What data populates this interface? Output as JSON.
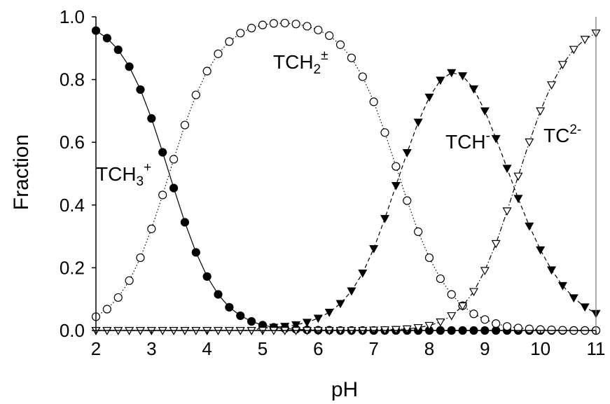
{
  "chart_data": {
    "type": "scatter",
    "title": "",
    "xlabel": "pH",
    "ylabel": "Fraction",
    "xlim": [
      2,
      11
    ],
    "ylim": [
      0,
      1
    ],
    "xticks": [
      "2",
      "3",
      "4",
      "5",
      "6",
      "7",
      "8",
      "9",
      "10",
      "11"
    ],
    "yticks": [
      "0.0",
      "0.2",
      "0.4",
      "0.6",
      "0.8",
      "1.0"
    ],
    "grid": false,
    "legend": "none",
    "right_border": true,
    "x": [
      2.0,
      2.2,
      2.4,
      2.6,
      2.8,
      3.0,
      3.2,
      3.4,
      3.6,
      3.8,
      4.0,
      4.2,
      4.4,
      4.6,
      4.8,
      5.0,
      5.2,
      5.4,
      5.6,
      5.8,
      6.0,
      6.2,
      6.4,
      6.6,
      6.8,
      7.0,
      7.2,
      7.4,
      7.6,
      7.8,
      8.0,
      8.2,
      8.4,
      8.6,
      8.8,
      9.0,
      9.2,
      9.4,
      9.6,
      9.8,
      10.0,
      10.2,
      10.4,
      10.6,
      10.8,
      11.0
    ],
    "series": [
      {
        "name": "TCH3+",
        "label_base": "TCH",
        "label_sub": "3",
        "label_sup": "+",
        "marker": "filled-circle",
        "line": "solid",
        "y": [
          0.956,
          0.932,
          0.895,
          0.841,
          0.768,
          0.676,
          0.568,
          0.454,
          0.345,
          0.249,
          0.172,
          0.115,
          0.074,
          0.047,
          0.029,
          0.017,
          0.01,
          0.006,
          0.004,
          0.002,
          0.001,
          0.001,
          0.0,
          0.0,
          0.0,
          0.0,
          0.0,
          0.0,
          0.0,
          0.0,
          0.0,
          0.0,
          0.0,
          0.0,
          0.0,
          0.0,
          0.0,
          0.0,
          0.0,
          0.0,
          0.0,
          0.0,
          0.0,
          0.0,
          0.0,
          0.0
        ]
      },
      {
        "name": "TCH2±",
        "label_base": "TCH",
        "label_sub": "2",
        "label_sup": "±",
        "marker": "open-circle",
        "line": "dotted",
        "y": [
          0.044,
          0.068,
          0.105,
          0.159,
          0.232,
          0.324,
          0.432,
          0.546,
          0.655,
          0.751,
          0.827,
          0.882,
          0.921,
          0.948,
          0.964,
          0.974,
          0.979,
          0.98,
          0.977,
          0.97,
          0.958,
          0.94,
          0.911,
          0.869,
          0.809,
          0.729,
          0.631,
          0.523,
          0.414,
          0.315,
          0.232,
          0.165,
          0.115,
          0.079,
          0.053,
          0.035,
          0.022,
          0.013,
          0.008,
          0.005,
          0.003,
          0.002,
          0.001,
          0.0,
          0.0,
          0.0
        ]
      },
      {
        "name": "TCH-",
        "label_base": "TCH",
        "label_sub": "",
        "label_sup": "-",
        "marker": "filled-triangle-down",
        "line": "dashed",
        "y": [
          0.0,
          0.0,
          0.0,
          0.0,
          0.0,
          0.0,
          0.0,
          0.0,
          0.0,
          0.0,
          0.0,
          0.0,
          0.0,
          0.0,
          0.0,
          0.008,
          0.01,
          0.013,
          0.018,
          0.026,
          0.039,
          0.058,
          0.086,
          0.126,
          0.183,
          0.261,
          0.357,
          0.462,
          0.567,
          0.664,
          0.744,
          0.798,
          0.822,
          0.812,
          0.77,
          0.7,
          0.612,
          0.517,
          0.421,
          0.333,
          0.257,
          0.193,
          0.143,
          0.104,
          0.075,
          0.054
        ]
      },
      {
        "name": "TC2-",
        "label_base": "TC",
        "label_sub": "",
        "label_sup": "2-",
        "marker": "open-triangle-down",
        "line": "dashdot",
        "y": [
          0.0,
          0.0,
          0.0,
          0.0,
          0.0,
          0.0,
          0.0,
          0.0,
          0.0,
          0.0,
          0.0,
          0.0,
          0.0,
          0.0,
          0.0,
          0.0,
          0.0,
          0.0,
          0.0,
          0.0,
          0.0,
          0.0,
          0.0,
          0.0,
          0.0,
          0.001,
          0.002,
          0.003,
          0.005,
          0.009,
          0.016,
          0.027,
          0.047,
          0.078,
          0.124,
          0.191,
          0.277,
          0.381,
          0.492,
          0.601,
          0.7,
          0.783,
          0.848,
          0.896,
          0.928,
          0.948
        ]
      }
    ]
  }
}
